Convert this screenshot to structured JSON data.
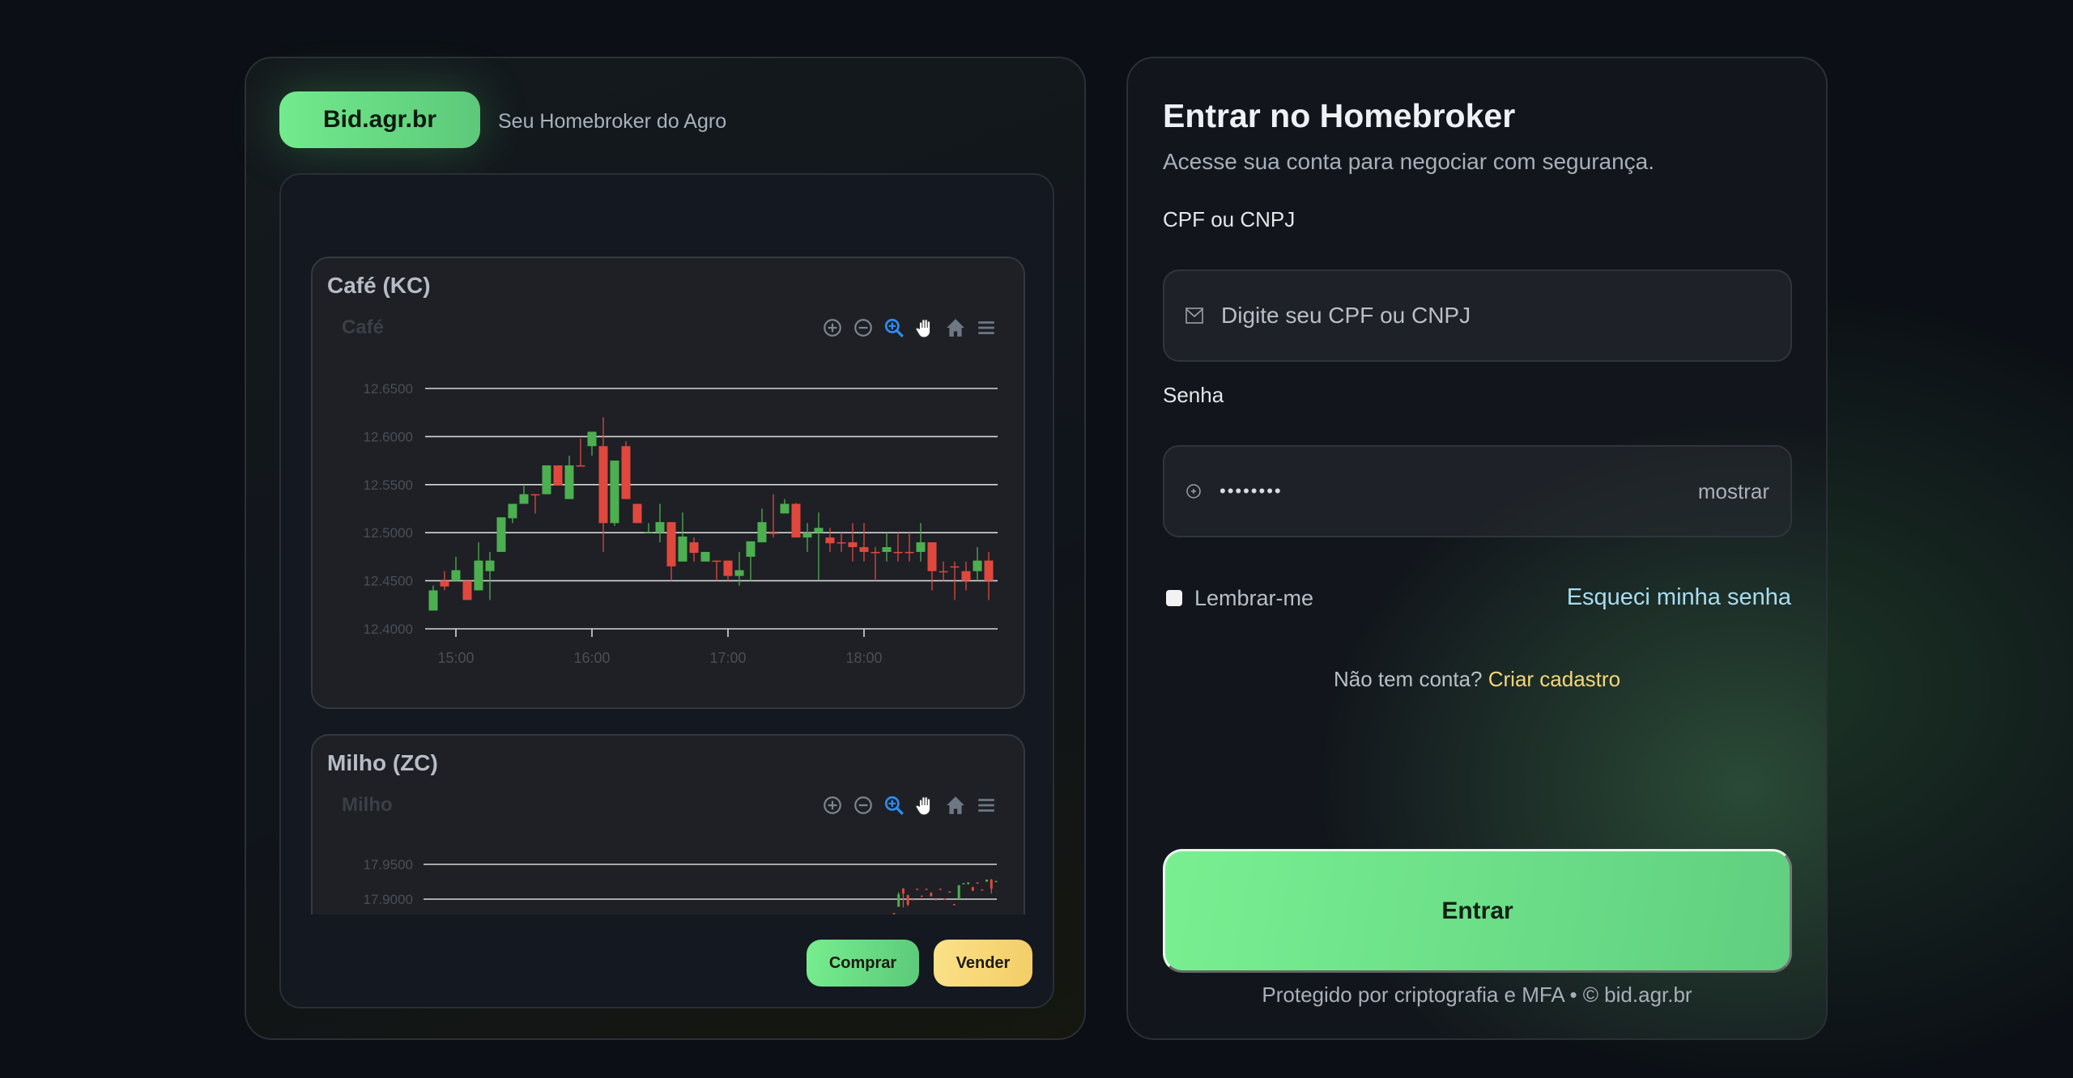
{
  "brand": {
    "logo": "Bid.agr.br",
    "tagline": "Seu Homebroker do Agro"
  },
  "colors": {
    "up": "#4caf50",
    "down": "#e0483e",
    "accent": "#6fe58b",
    "sell": "#f6d36d",
    "link": "#a8dcef",
    "signup": "#f5d67a"
  },
  "toolbar_icons": [
    "zoom-in-icon",
    "zoom-out-icon",
    "zoom-select-icon",
    "pan-hand-icon",
    "home-reset-icon",
    "menu-icon"
  ],
  "charts": [
    {
      "title": "Café (KC)",
      "subtitle": "Café"
    },
    {
      "title": "Milho (ZC)",
      "subtitle": "Milho"
    }
  ],
  "chart_data": [
    {
      "type": "candlestick",
      "title": "Café",
      "ylim": [
        12.4,
        12.65
      ],
      "yticks": [
        "12.6500",
        "12.6000",
        "12.5500",
        "12.5000",
        "12.4500",
        "12.4000"
      ],
      "xticks": [
        "15:00",
        "16:00",
        "17:00",
        "18:00"
      ],
      "grid": true,
      "candles": [
        [
          "14:50",
          12.419,
          12.445,
          12.419,
          12.44
        ],
        [
          "14:55",
          12.45,
          12.46,
          12.44,
          12.444
        ],
        [
          "15:00",
          12.45,
          12.475,
          12.45,
          12.461
        ],
        [
          "15:05",
          12.45,
          12.45,
          12.43,
          12.43
        ],
        [
          "15:10",
          12.44,
          12.49,
          12.44,
          12.471
        ],
        [
          "15:15",
          12.46,
          12.48,
          12.43,
          12.471
        ],
        [
          "15:20",
          12.48,
          12.516,
          12.48,
          12.516
        ],
        [
          "15:25",
          12.515,
          12.53,
          12.51,
          12.53
        ],
        [
          "15:30",
          12.53,
          12.55,
          12.53,
          12.54
        ],
        [
          "15:35",
          12.54,
          12.54,
          12.52,
          12.539
        ],
        [
          "15:40",
          12.54,
          12.57,
          12.54,
          12.57
        ],
        [
          "15:45",
          12.57,
          12.57,
          12.549,
          12.549
        ],
        [
          "15:50",
          12.535,
          12.58,
          12.535,
          12.57
        ],
        [
          "15:55",
          12.57,
          12.598,
          12.569,
          12.569
        ],
        [
          "16:00",
          12.59,
          12.605,
          12.58,
          12.605
        ],
        [
          "16:05",
          12.59,
          12.62,
          12.48,
          12.51
        ],
        [
          "16:10",
          12.51,
          12.575,
          12.507,
          12.575
        ],
        [
          "16:15",
          12.59,
          12.595,
          12.535,
          12.535
        ],
        [
          "16:20",
          12.53,
          12.53,
          12.51,
          12.51
        ],
        [
          "16:25",
          12.5,
          12.51,
          12.5,
          12.501
        ],
        [
          "16:30",
          12.5,
          12.53,
          12.49,
          12.511
        ],
        [
          "16:35",
          12.511,
          12.511,
          12.45,
          12.465
        ],
        [
          "16:40",
          12.47,
          12.521,
          12.47,
          12.496
        ],
        [
          "16:45",
          12.49,
          12.495,
          12.47,
          12.479
        ],
        [
          "16:50",
          12.47,
          12.48,
          12.47,
          12.48
        ],
        [
          "16:55",
          12.471,
          12.471,
          12.45,
          12.47
        ],
        [
          "17:00",
          12.471,
          12.471,
          12.45,
          12.455
        ],
        [
          "17:05",
          12.455,
          12.48,
          12.445,
          12.461
        ],
        [
          "17:10",
          12.475,
          12.491,
          12.45,
          12.491
        ],
        [
          "17:15",
          12.49,
          12.525,
          12.49,
          12.511
        ],
        [
          "17:20",
          12.5,
          12.54,
          12.495,
          12.499
        ],
        [
          "17:25",
          12.52,
          12.535,
          12.52,
          12.53
        ],
        [
          "17:30",
          12.53,
          12.531,
          12.495,
          12.495
        ],
        [
          "17:35",
          12.495,
          12.51,
          12.48,
          12.5
        ],
        [
          "17:40",
          12.5,
          12.521,
          12.451,
          12.505
        ],
        [
          "17:45",
          12.495,
          12.505,
          12.48,
          12.489
        ],
        [
          "17:50",
          12.49,
          12.5,
          12.48,
          12.489
        ],
        [
          "17:55",
          12.49,
          12.51,
          12.47,
          12.485
        ],
        [
          "18:00",
          12.485,
          12.51,
          12.47,
          12.48
        ],
        [
          "18:05",
          12.48,
          12.485,
          12.45,
          12.479
        ],
        [
          "18:10",
          12.48,
          12.5,
          12.47,
          12.485
        ],
        [
          "18:15",
          12.48,
          12.5,
          12.47,
          12.479
        ],
        [
          "18:20",
          12.48,
          12.5,
          12.47,
          12.479
        ],
        [
          "18:25",
          12.48,
          12.51,
          12.47,
          12.49
        ],
        [
          "18:30",
          12.49,
          12.49,
          12.44,
          12.46
        ],
        [
          "18:35",
          12.46,
          12.47,
          12.45,
          12.459
        ],
        [
          "18:40",
          12.465,
          12.47,
          12.43,
          12.464
        ],
        [
          "18:45",
          12.46,
          12.47,
          12.44,
          12.45
        ],
        [
          "18:50",
          12.46,
          12.485,
          12.45,
          12.471
        ],
        [
          "18:55",
          12.471,
          12.48,
          12.43,
          12.45
        ]
      ]
    },
    {
      "type": "candlestick",
      "title": "Milho",
      "yticks": [
        "17.9500",
        "17.9000"
      ],
      "grid": true,
      "candles": [
        [
          17.88,
          17.88,
          17.879,
          17.879
        ],
        [
          17.889,
          17.91,
          17.889,
          17.907
        ],
        [
          17.915,
          17.916,
          17.888,
          17.908
        ],
        [
          17.906,
          17.906,
          17.89,
          17.892
        ],
        [
          17.9,
          17.9,
          17.899,
          17.899
        ],
        [
          17.915,
          17.915,
          17.914,
          17.914
        ],
        [
          17.905,
          17.905,
          17.904,
          17.904
        ],
        [
          17.915,
          17.915,
          17.914,
          17.914
        ],
        [
          17.909,
          17.91,
          17.904,
          17.904
        ],
        [
          17.9,
          17.9,
          17.899,
          17.899
        ],
        [
          17.915,
          17.915,
          17.914,
          17.914
        ],
        [
          17.901,
          17.901,
          17.9,
          17.9
        ],
        [
          17.911,
          17.911,
          17.91,
          17.91
        ],
        [
          17.893,
          17.893,
          17.892,
          17.892
        ],
        [
          17.9,
          17.92,
          17.9,
          17.92
        ],
        [
          17.922,
          17.923,
          17.922,
          17.923
        ],
        [
          17.922,
          17.924,
          17.921,
          17.924
        ],
        [
          17.917,
          17.918,
          17.912,
          17.912
        ],
        [
          17.924,
          17.924,
          17.923,
          17.923
        ],
        [
          17.914,
          17.914,
          17.913,
          17.913
        ],
        [
          17.925,
          17.928,
          17.925,
          17.928
        ],
        [
          17.928,
          17.929,
          17.908,
          17.915
        ],
        [
          17.925,
          17.926,
          17.925,
          17.926
        ]
      ]
    }
  ],
  "actions": {
    "buy": "Comprar",
    "sell": "Vender"
  },
  "login": {
    "title": "Entrar no Homebroker",
    "subtitle": "Acesse sua conta para negociar com segurança.",
    "doc_label": "CPF ou CNPJ",
    "doc_placeholder": "Digite seu CPF ou CNPJ",
    "password_label": "Senha",
    "password_value": "••••••••",
    "show": "mostrar",
    "remember": "Lembrar-me",
    "forgot": "Esqueci minha senha",
    "no_account": "Não tem conta?",
    "signup": "Criar cadastro",
    "submit": "Entrar",
    "footer": "Protegido por criptografia e MFA • © bid.agr.br"
  }
}
